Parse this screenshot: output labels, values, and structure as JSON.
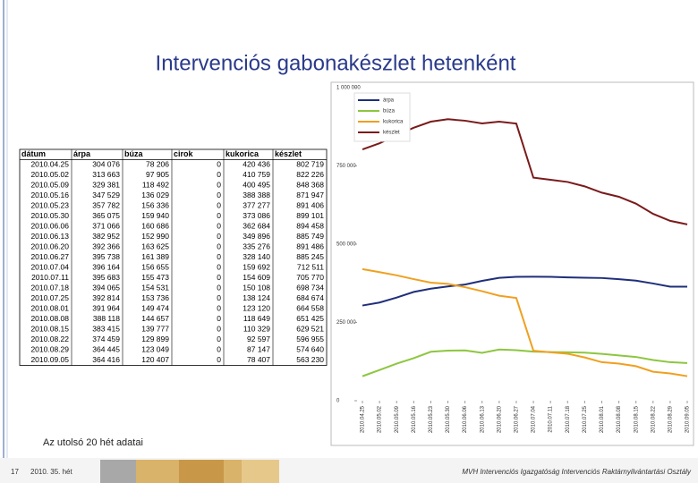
{
  "title": "Intervenciós gabonakészlet hetenként",
  "caption": "Az utolsó 20 hét adatai",
  "footer": {
    "page": "17",
    "week": "2010. 35. hét",
    "org": "MVH Intervenciós Igazgatóság Intervenciós Raktárnyilvántartási Osztály"
  },
  "table": {
    "header": [
      "dátum",
      "árpa",
      "búza",
      "cirok",
      "kukorica",
      "készlet"
    ],
    "rows": [
      [
        "2010.04.25",
        "304 076",
        "78 206",
        "0",
        "420 436",
        "802 719"
      ],
      [
        "2010.05.02",
        "313 663",
        "97 905",
        "0",
        "410 759",
        "822 226"
      ],
      [
        "2010.05.09",
        "329 381",
        "118 492",
        "0",
        "400 495",
        "848 368"
      ],
      [
        "2010.05.16",
        "347 529",
        "136 029",
        "0",
        "388 388",
        "871 947"
      ],
      [
        "2010.05.23",
        "357 782",
        "156 336",
        "0",
        "377 277",
        "891 406"
      ],
      [
        "2010.05.30",
        "365 075",
        "159 940",
        "0",
        "373 086",
        "899 101"
      ],
      [
        "2010.06.06",
        "371 066",
        "160 686",
        "0",
        "362 684",
        "894 458"
      ],
      [
        "2010.06.13",
        "382 952",
        "152 990",
        "0",
        "349 896",
        "885 749"
      ],
      [
        "2010.06.20",
        "392 366",
        "163 625",
        "0",
        "335 276",
        "891 486"
      ],
      [
        "2010.06.27",
        "395 738",
        "161 389",
        "0",
        "328 140",
        "885 245"
      ],
      [
        "2010.07.04",
        "396 164",
        "156 655",
        "0",
        "159 692",
        "712 511"
      ],
      [
        "2010.07.11",
        "395 683",
        "155 473",
        "0",
        "154 609",
        "705 770"
      ],
      [
        "2010.07.18",
        "394 065",
        "154 531",
        "0",
        "150 108",
        "698 734"
      ],
      [
        "2010.07.25",
        "392 814",
        "153 736",
        "0",
        "138 124",
        "684 674"
      ],
      [
        "2010.08.01",
        "391 964",
        "149 474",
        "0",
        "123 120",
        "664 558"
      ],
      [
        "2010.08.08",
        "388 118",
        "144 657",
        "0",
        "118 649",
        "651 425"
      ],
      [
        "2010.08.15",
        "383 415",
        "139 777",
        "0",
        "110 329",
        "629 521"
      ],
      [
        "2010.08.22",
        "374 459",
        "129 899",
        "0",
        "92 597",
        "596 955"
      ],
      [
        "2010.08.29",
        "364 445",
        "123 049",
        "0",
        "87 147",
        "574 640"
      ],
      [
        "2010.09.05",
        "364 416",
        "120 407",
        "0",
        "78 407",
        "563 230"
      ]
    ]
  },
  "chart_data": {
    "type": "line",
    "categories": [
      "2010.04.25",
      "2010.05.02",
      "2010.05.09",
      "2010.05.16",
      "2010.05.23",
      "2010.05.30",
      "2010.06.06",
      "2010.06.13",
      "2010.06.20",
      "2010.06.27",
      "2010.07.04",
      "2010.07.11",
      "2010.07.18",
      "2010.07.25",
      "2010.08.01",
      "2010.08.08",
      "2010.08.15",
      "2010.08.22",
      "2010.08.29",
      "2010.09.05"
    ],
    "series": [
      {
        "name": "árpa",
        "color": "#1f2f7a",
        "values": [
          304076,
          313663,
          329381,
          347529,
          357782,
          365075,
          371066,
          382952,
          392366,
          395738,
          396164,
          395683,
          394065,
          392814,
          391964,
          388118,
          383415,
          374459,
          364445,
          364416
        ]
      },
      {
        "name": "búza",
        "color": "#8dc63f",
        "values": [
          78206,
          97905,
          118492,
          136029,
          156336,
          159940,
          160686,
          152990,
          163625,
          161389,
          156655,
          155473,
          154531,
          153736,
          149474,
          144657,
          139777,
          129899,
          123049,
          120407
        ]
      },
      {
        "name": "kukorica",
        "color": "#f0a020",
        "values": [
          420436,
          410759,
          400495,
          388388,
          377277,
          373086,
          362684,
          349896,
          335276,
          328140,
          159692,
          154609,
          150108,
          138124,
          123120,
          118649,
          110329,
          92597,
          87147,
          78407
        ]
      },
      {
        "name": "készlet",
        "color": "#7a1a1a",
        "values": [
          802719,
          822226,
          848368,
          871947,
          891406,
          899101,
          894458,
          885749,
          891486,
          885245,
          712511,
          705770,
          698734,
          684674,
          664558,
          651425,
          629521,
          596955,
          574640,
          563230
        ]
      }
    ],
    "ylim": [
      0,
      1000000
    ],
    "yticks": [
      0,
      {
        "value": 250000,
        "label": "250 000"
      },
      {
        "value": 500000,
        "label": "500 000"
      },
      {
        "value": 750000,
        "label": "750 000"
      },
      {
        "value": 1000000,
        "label": "1 000 000"
      }
    ],
    "legend": "upper left"
  }
}
